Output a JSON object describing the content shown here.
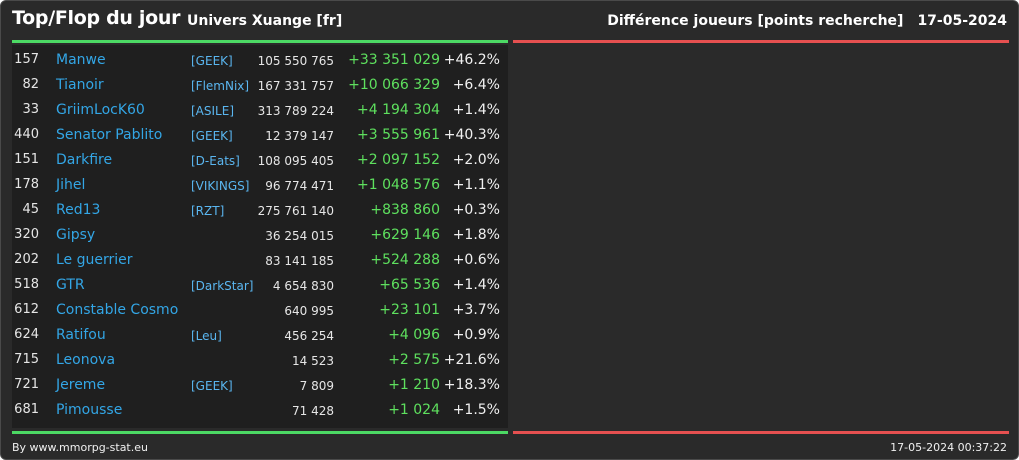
{
  "header": {
    "title": "Top/Flop du jour",
    "universe": "Univers Xuange [fr]",
    "metric": "Différence joueurs [points recherche]",
    "date": "17-05-2024"
  },
  "colors": {
    "top_line": "#4cd964",
    "flop_line": "#e55050",
    "name": "#33a6e6",
    "gain": "#5ee05e"
  },
  "top": [
    {
      "rank": "157",
      "name": "Manwe",
      "ally": "[GEEK]",
      "points": "105 550 765",
      "diff": "+33 351 029",
      "pct": "+46.2%"
    },
    {
      "rank": "82",
      "name": "Tianoir",
      "ally": "[FlemNix]",
      "points": "167 331 757",
      "diff": "+10 066 329",
      "pct": "+6.4%"
    },
    {
      "rank": "33",
      "name": "GriimLocK60",
      "ally": "[ASILE]",
      "points": "313 789 224",
      "diff": "+4 194 304",
      "pct": "+1.4%"
    },
    {
      "rank": "440",
      "name": "Senator Pablito",
      "ally": "[GEEK]",
      "points": "12 379 147",
      "diff": "+3 555 961",
      "pct": "+40.3%"
    },
    {
      "rank": "151",
      "name": "Darkfire",
      "ally": "[D-Eats]",
      "points": "108 095 405",
      "diff": "+2 097 152",
      "pct": "+2.0%"
    },
    {
      "rank": "178",
      "name": "Jihel",
      "ally": "[VIKINGS]",
      "points": "96 774 471",
      "diff": "+1 048 576",
      "pct": "+1.1%"
    },
    {
      "rank": "45",
      "name": "Red13",
      "ally": "[RZT]",
      "points": "275 761 140",
      "diff": "+838 860",
      "pct": "+0.3%"
    },
    {
      "rank": "320",
      "name": "Gipsy",
      "ally": "",
      "points": "36 254 015",
      "diff": "+629 146",
      "pct": "+1.8%"
    },
    {
      "rank": "202",
      "name": "Le guerrier",
      "ally": "",
      "points": "83 141 185",
      "diff": "+524 288",
      "pct": "+0.6%"
    },
    {
      "rank": "518",
      "name": "GTR",
      "ally": "[DarkStar]",
      "points": "4 654 830",
      "diff": "+65 536",
      "pct": "+1.4%"
    },
    {
      "rank": "612",
      "name": "Constable Cosmo",
      "ally": "",
      "points": "640 995",
      "diff": "+23 101",
      "pct": "+3.7%"
    },
    {
      "rank": "624",
      "name": "Ratifou",
      "ally": "[Leu]",
      "points": "456 254",
      "diff": "+4 096",
      "pct": "+0.9%"
    },
    {
      "rank": "715",
      "name": "Leonova",
      "ally": "",
      "points": "14 523",
      "diff": "+2 575",
      "pct": "+21.6%"
    },
    {
      "rank": "721",
      "name": "Jereme",
      "ally": "[GEEK]",
      "points": "7 809",
      "diff": "+1 210",
      "pct": "+18.3%"
    },
    {
      "rank": "681",
      "name": "Pimousse",
      "ally": "",
      "points": "71 428",
      "diff": "+1 024",
      "pct": "+1.5%"
    }
  ],
  "footer": {
    "credit": "By www.mmorpg-stat.eu",
    "timestamp": "17-05-2024 00:37:22"
  }
}
